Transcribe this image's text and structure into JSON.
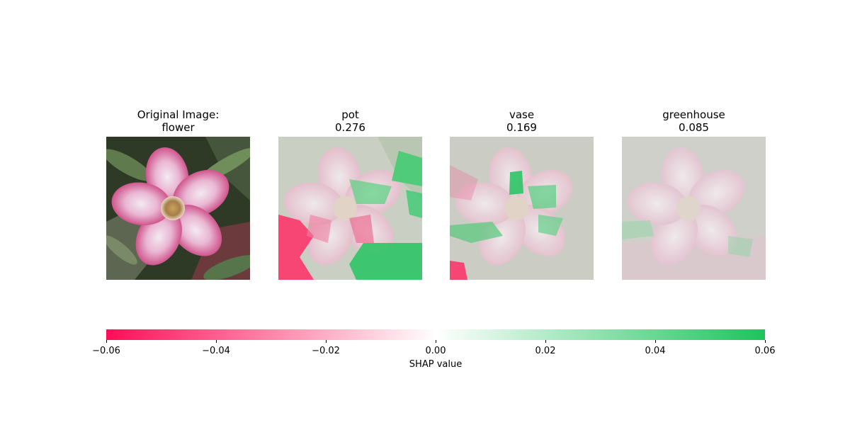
{
  "chart_data": {
    "type": "image-attribution",
    "panels": [
      {
        "title_line1": "Original Image:",
        "title_line2": "flower",
        "kind": "original"
      },
      {
        "title_line1": "pot",
        "title_line2": "0.276",
        "kind": "shap"
      },
      {
        "title_line1": "vase",
        "title_line2": "0.169",
        "kind": "shap"
      },
      {
        "title_line1": "greenhouse",
        "title_line2": "0.085",
        "kind": "shap"
      }
    ],
    "colorbar": {
      "label": "SHAP value",
      "range": [
        -0.06,
        0.06
      ],
      "ticks": [
        "−0.06",
        "−0.04",
        "−0.02",
        "0.00",
        "0.02",
        "0.04",
        "0.06"
      ],
      "tick_values": [
        -0.06,
        -0.04,
        -0.02,
        0.0,
        0.02,
        0.04,
        0.06
      ],
      "negative_color": "#ff0d57",
      "positive_color": "#1ec35c"
    }
  }
}
